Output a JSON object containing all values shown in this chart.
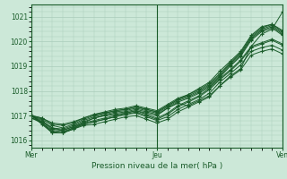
{
  "title": "",
  "xlabel": "Pression niveau de la mer( hPa )",
  "ylabel": "",
  "bg_color": "#cce8d8",
  "grid_color": "#aaccbb",
  "line_color": "#1a5c2a",
  "ylim": [
    1015.7,
    1021.5
  ],
  "yticks": [
    1016,
    1017,
    1018,
    1019,
    1020,
    1021
  ],
  "xlim": [
    0,
    48
  ],
  "xtick_positions": [
    0,
    24,
    48
  ],
  "xtick_labels": [
    "Mer",
    "Jeu",
    "Ven"
  ],
  "series": [
    [
      1017.0,
      1016.7,
      1016.3,
      1016.3,
      1016.5,
      1016.7,
      1016.9,
      1017.0,
      1017.05,
      1017.1,
      1017.2,
      1017.1,
      1017.0,
      1017.3,
      1017.5,
      1017.4,
      1017.6,
      1017.8,
      1018.2,
      1018.6,
      1018.9,
      1019.8,
      1020.3,
      1020.5,
      1021.2
    ],
    [
      1017.0,
      1016.75,
      1016.45,
      1016.4,
      1016.55,
      1016.75,
      1016.9,
      1017.0,
      1017.1,
      1017.15,
      1017.25,
      1017.15,
      1017.05,
      1017.3,
      1017.55,
      1017.7,
      1017.9,
      1018.15,
      1018.55,
      1019.0,
      1019.4,
      1020.05,
      1020.4,
      1020.55,
      1020.25
    ],
    [
      1017.0,
      1016.8,
      1016.5,
      1016.45,
      1016.6,
      1016.8,
      1016.95,
      1017.05,
      1017.15,
      1017.2,
      1017.3,
      1017.2,
      1017.1,
      1017.35,
      1017.6,
      1017.75,
      1017.95,
      1018.2,
      1018.6,
      1019.05,
      1019.45,
      1020.1,
      1020.45,
      1020.6,
      1020.3
    ],
    [
      1017.0,
      1016.85,
      1016.6,
      1016.5,
      1016.65,
      1016.85,
      1017.0,
      1017.1,
      1017.2,
      1017.25,
      1017.35,
      1017.25,
      1017.15,
      1017.4,
      1017.65,
      1017.8,
      1018.0,
      1018.25,
      1018.65,
      1019.1,
      1019.5,
      1020.15,
      1020.5,
      1020.65,
      1020.35
    ],
    [
      1017.0,
      1016.9,
      1016.65,
      1016.6,
      1016.7,
      1016.9,
      1017.05,
      1017.15,
      1017.25,
      1017.3,
      1017.4,
      1017.3,
      1017.2,
      1017.45,
      1017.7,
      1017.85,
      1018.05,
      1018.3,
      1018.7,
      1019.15,
      1019.55,
      1020.2,
      1020.55,
      1020.7,
      1020.4
    ],
    [
      1017.0,
      1016.9,
      1016.7,
      1016.65,
      1016.75,
      1016.9,
      1017.05,
      1017.1,
      1017.2,
      1017.25,
      1017.35,
      1017.25,
      1017.15,
      1017.4,
      1017.65,
      1017.85,
      1018.1,
      1018.35,
      1018.8,
      1019.2,
      1019.6,
      1020.25,
      1020.6,
      1020.7,
      1020.45
    ],
    [
      1016.9,
      1016.75,
      1016.5,
      1016.4,
      1016.55,
      1016.7,
      1016.8,
      1016.9,
      1017.0,
      1017.1,
      1017.2,
      1017.05,
      1016.9,
      1017.1,
      1017.4,
      1017.6,
      1017.8,
      1018.1,
      1018.5,
      1018.85,
      1019.25,
      1019.8,
      1019.95,
      1020.1,
      1019.9
    ],
    [
      1016.9,
      1016.7,
      1016.4,
      1016.35,
      1016.5,
      1016.65,
      1016.75,
      1016.85,
      1016.95,
      1017.05,
      1017.15,
      1017.0,
      1016.85,
      1017.05,
      1017.35,
      1017.55,
      1017.75,
      1018.05,
      1018.45,
      1018.8,
      1019.2,
      1019.75,
      1019.9,
      1020.05,
      1019.85
    ],
    [
      1017.0,
      1016.7,
      1016.35,
      1016.3,
      1016.45,
      1016.65,
      1016.75,
      1016.85,
      1016.95,
      1017.05,
      1017.1,
      1016.95,
      1016.8,
      1016.95,
      1017.25,
      1017.45,
      1017.65,
      1017.9,
      1018.35,
      1018.7,
      1019.05,
      1019.6,
      1019.75,
      1019.85,
      1019.65
    ],
    [
      1017.0,
      1016.65,
      1016.3,
      1016.3,
      1016.45,
      1016.6,
      1016.65,
      1016.75,
      1016.85,
      1016.95,
      1017.0,
      1016.85,
      1016.7,
      1016.85,
      1017.15,
      1017.35,
      1017.55,
      1017.75,
      1018.2,
      1018.55,
      1018.85,
      1019.45,
      1019.6,
      1019.7,
      1019.5
    ]
  ]
}
